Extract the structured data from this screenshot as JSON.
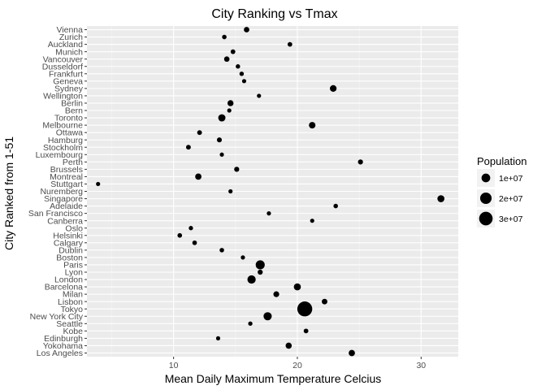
{
  "chart_data": {
    "type": "scatter",
    "title": "City Ranking vs Tmax",
    "xlabel": "Mean Daily Maximum Temperature Celcius",
    "ylabel": "City Ranked from 1-51",
    "xlim": [
      3.0,
      33.0
    ],
    "xticks": [
      10,
      20,
      30
    ],
    "grid": true,
    "legend": {
      "title": "Population",
      "placement": "right",
      "entries": [
        {
          "label": "1e+07",
          "value": 10000000
        },
        {
          "label": "2e+07",
          "value": 20000000
        },
        {
          "label": "3e+07",
          "value": 30000000
        }
      ]
    },
    "points": [
      {
        "city": "Vienna",
        "tmax": 15.9,
        "population": 2600000
      },
      {
        "city": "Zurich",
        "tmax": 14.1,
        "population": 1300000
      },
      {
        "city": "Auckland",
        "tmax": 19.4,
        "population": 1500000
      },
      {
        "city": "Munich",
        "tmax": 14.8,
        "population": 1500000
      },
      {
        "city": "Vancouver",
        "tmax": 14.3,
        "population": 2500000
      },
      {
        "city": "Dusseldorf",
        "tmax": 15.2,
        "population": 1200000
      },
      {
        "city": "Frankfurt",
        "tmax": 15.5,
        "population": 1200000
      },
      {
        "city": "Geneva",
        "tmax": 15.7,
        "population": 1000000
      },
      {
        "city": "Sydney",
        "tmax": 22.9,
        "population": 4800000
      },
      {
        "city": "Wellington",
        "tmax": 16.9,
        "population": 1000000
      },
      {
        "city": "Berlin",
        "tmax": 14.6,
        "population": 3500000
      },
      {
        "city": "Bern",
        "tmax": 14.5,
        "population": 1000000
      },
      {
        "city": "Toronto",
        "tmax": 13.9,
        "population": 6000000
      },
      {
        "city": "Melbourne",
        "tmax": 21.2,
        "population": 4500000
      },
      {
        "city": "Ottawa",
        "tmax": 12.1,
        "population": 1600000
      },
      {
        "city": "Hamburg",
        "tmax": 13.7,
        "population": 1800000
      },
      {
        "city": "Stockholm",
        "tmax": 11.2,
        "population": 1600000
      },
      {
        "city": "Luxembourg",
        "tmax": 13.9,
        "population": 1000000
      },
      {
        "city": "Perth",
        "tmax": 25.1,
        "population": 2000000
      },
      {
        "city": "Brussels",
        "tmax": 15.1,
        "population": 2000000
      },
      {
        "city": "Montreal",
        "tmax": 12.0,
        "population": 4000000
      },
      {
        "city": "Stuttgart",
        "tmax": 3.9,
        "population": 1000000
      },
      {
        "city": "Nuremberg",
        "tmax": 14.6,
        "population": 1000000
      },
      {
        "city": "Singapore",
        "tmax": 31.6,
        "population": 5600000
      },
      {
        "city": "Adelaide",
        "tmax": 23.1,
        "population": 1300000
      },
      {
        "city": "San Francisco",
        "tmax": 17.7,
        "population": 1000000
      },
      {
        "city": "Canberra",
        "tmax": 21.2,
        "population": 1000000
      },
      {
        "city": "Oslo",
        "tmax": 11.4,
        "population": 1100000
      },
      {
        "city": "Helsinki",
        "tmax": 10.5,
        "population": 1400000
      },
      {
        "city": "Calgary",
        "tmax": 11.7,
        "population": 1400000
      },
      {
        "city": "Dublin",
        "tmax": 13.9,
        "population": 1300000
      },
      {
        "city": "Boston",
        "tmax": 15.6,
        "population": 1000000
      },
      {
        "city": "Paris",
        "tmax": 17.0,
        "population": 11000000
      },
      {
        "city": "Lyon",
        "tmax": 17.0,
        "population": 2000000
      },
      {
        "city": "London",
        "tmax": 16.3,
        "population": 8800000
      },
      {
        "city": "Barcelona",
        "tmax": 20.0,
        "population": 5500000
      },
      {
        "city": "Milan",
        "tmax": 18.3,
        "population": 3100000
      },
      {
        "city": "Lisbon",
        "tmax": 22.2,
        "population": 2800000
      },
      {
        "city": "Tokyo",
        "tmax": 20.6,
        "population": 38000000
      },
      {
        "city": "New York City",
        "tmax": 17.6,
        "population": 8500000
      },
      {
        "city": "Seattle",
        "tmax": 16.2,
        "population": 1100000
      },
      {
        "city": "Kobe",
        "tmax": 20.7,
        "population": 1500000
      },
      {
        "city": "Edinburgh",
        "tmax": 13.6,
        "population": 1000000
      },
      {
        "city": "Yokohama",
        "tmax": 19.3,
        "population": 3700000
      },
      {
        "city": "Los Angeles",
        "tmax": 24.4,
        "population": 4000000
      }
    ]
  }
}
